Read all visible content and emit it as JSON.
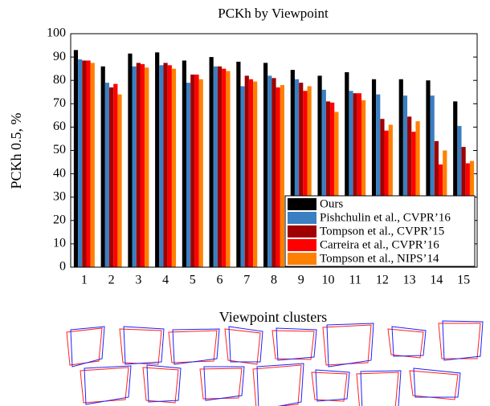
{
  "chart_data": {
    "type": "bar",
    "title": "PCKh by Viewpoint",
    "x_label": "Viewpoint clusters",
    "y_label": "PCKh 0.5, %",
    "categories": [
      "1",
      "2",
      "3",
      "4",
      "5",
      "6",
      "7",
      "8",
      "9",
      "10",
      "11",
      "12",
      "13",
      "14",
      "15"
    ],
    "series": [
      {
        "name": "Ours",
        "color": "#000000",
        "values": [
          93,
          86,
          91.5,
          92,
          88.5,
          90,
          88,
          87.5,
          84.5,
          82,
          83.5,
          80.5,
          80.5,
          80,
          71
        ]
      },
      {
        "name": "Pishchulin et al., CVPR’16",
        "color": "#3a7fc1",
        "values": [
          89,
          79,
          86,
          86.5,
          79,
          86,
          77.5,
          82,
          80.5,
          76,
          75.5,
          74,
          73.5,
          73.5,
          60.5
        ]
      },
      {
        "name": "Tompson et al., CVPR’15",
        "color": "#a00000",
        "values": [
          88.5,
          77,
          87.5,
          87.5,
          82.5,
          86,
          82,
          81,
          79,
          71,
          74.5,
          63.5,
          64.5,
          54,
          51.5
        ]
      },
      {
        "name": "Carreira et al., CVPR’16",
        "color": "#ff0000",
        "values": [
          88.5,
          78.5,
          87,
          86.5,
          82.5,
          85,
          80.5,
          77,
          75.5,
          70.5,
          74.5,
          58.5,
          58,
          44,
          44.5
        ]
      },
      {
        "name": "Tompson et al., NIPS’14",
        "color": "#ff8000",
        "values": [
          87.5,
          74,
          85.5,
          85,
          80.5,
          84,
          79.5,
          78,
          77.5,
          66.5,
          71.5,
          61,
          62.5,
          50,
          45.5
        ]
      }
    ],
    "ylim": [
      0,
      100
    ],
    "yticks": [
      0,
      10,
      20,
      30,
      40,
      50,
      60,
      70,
      80,
      90,
      100
    ],
    "grid": false,
    "legend_position": "lower right"
  }
}
